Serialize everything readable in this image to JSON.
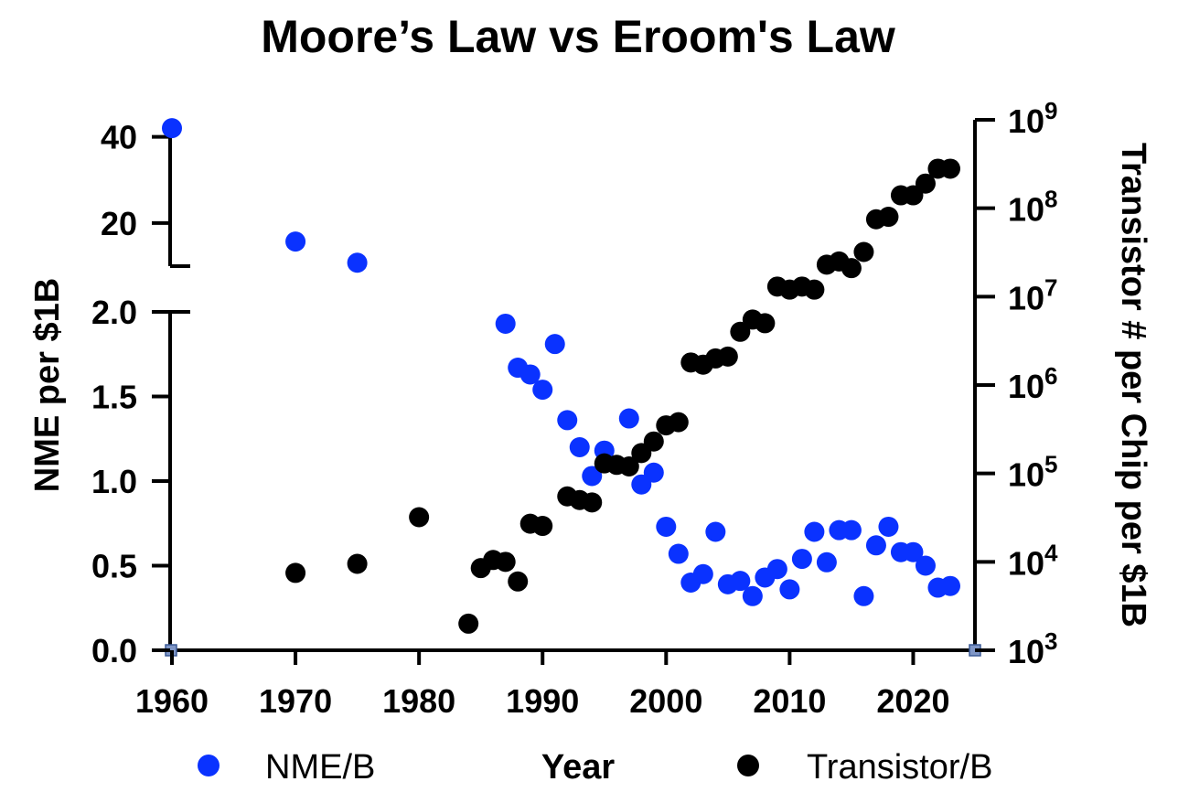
{
  "chart_data": {
    "type": "scatter",
    "title": "Moore’s Law vs Eroom's Law",
    "xlabel": "Year",
    "ylabel_left": "NME per $1B",
    "ylabel_right": "Transistor # per Chip per $1B",
    "xlim": [
      1960,
      2025
    ],
    "xticks": [
      "1960",
      "1970",
      "1980",
      "1990",
      "2000",
      "2010",
      "2020"
    ],
    "y_left_axis": {
      "broken": true,
      "lower_segment": {
        "range": [
          0,
          2.0
        ],
        "ticks": [
          "0.0",
          "0.5",
          "1.0",
          "1.5",
          "2.0"
        ]
      },
      "upper_segment": {
        "range": [
          10,
          45
        ],
        "ticks": [
          "20",
          "40"
        ]
      }
    },
    "y_right_axis": {
      "scale": "log",
      "range": [
        1000,
        1000000000
      ],
      "ticks": [
        {
          "base": "10",
          "exp": "3"
        },
        {
          "base": "10",
          "exp": "4"
        },
        {
          "base": "10",
          "exp": "5"
        },
        {
          "base": "10",
          "exp": "6"
        },
        {
          "base": "10",
          "exp": "7"
        },
        {
          "base": "10",
          "exp": "8"
        },
        {
          "base": "10",
          "exp": "9"
        }
      ]
    },
    "legend_position": "bottom",
    "series": [
      {
        "name": "NME/B",
        "axis": "left",
        "color": "#0a32ff",
        "x": [
          1960,
          1970,
          1975,
          1987,
          1988,
          1989,
          1990,
          1991,
          1992,
          1993,
          1994,
          1995,
          1997,
          1998,
          1999,
          2000,
          2001,
          2002,
          2003,
          2004,
          2005,
          2006,
          2007,
          2008,
          2009,
          2010,
          2011,
          2012,
          2013,
          2014,
          2015,
          2016,
          2017,
          2018,
          2019,
          2020,
          2021,
          2022,
          2023
        ],
        "y": [
          42,
          15.7,
          10.8,
          1.93,
          1.67,
          1.63,
          1.54,
          1.81,
          1.36,
          1.2,
          1.03,
          1.18,
          1.37,
          0.98,
          1.05,
          0.73,
          0.57,
          0.4,
          0.45,
          0.7,
          0.39,
          0.41,
          0.32,
          0.43,
          0.48,
          0.36,
          0.54,
          0.7,
          0.52,
          0.71,
          0.71,
          0.32,
          0.62,
          0.73,
          0.58,
          0.58,
          0.5,
          0.37,
          0.38
        ]
      },
      {
        "name": "Transistor/B",
        "axis": "right",
        "color": "#000000",
        "x": [
          1970,
          1975,
          1980,
          1984,
          1985,
          1986,
          1987,
          1988,
          1989,
          1990,
          1992,
          1993,
          1994,
          1995,
          1996,
          1997,
          1998,
          1999,
          2000,
          2001,
          2002,
          2003,
          2004,
          2005,
          2006,
          2007,
          2008,
          2009,
          2010,
          2011,
          2012,
          2013,
          2014,
          2015,
          2016,
          2017,
          2018,
          2019,
          2020,
          2021,
          2022,
          2023
        ],
        "y": [
          7500,
          9500,
          32000,
          2000,
          8500,
          10500,
          10000,
          6000,
          27000,
          25500,
          55000,
          50000,
          47000,
          130000,
          125000,
          120000,
          170000,
          230000,
          350000,
          380000,
          1800000,
          1700000,
          2000000,
          2100000,
          4000000,
          5500000,
          5000000,
          13000000,
          12000000,
          13000000,
          12000000,
          23000000,
          25000000,
          21000000,
          32000000,
          75000000,
          80000000,
          140000000,
          140000000,
          190000000,
          280000000,
          280000000
        ]
      }
    ]
  }
}
